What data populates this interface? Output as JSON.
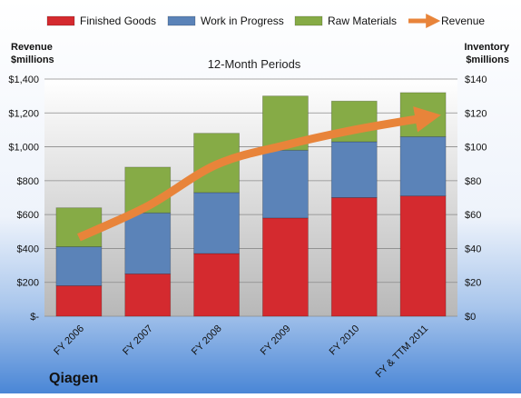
{
  "chart_data": {
    "type": "bar",
    "stacked": true,
    "title": "12-Month Periods",
    "company": "Qiagen",
    "y_left_label_lines": [
      "Revenue",
      "$millions"
    ],
    "y_right_label_lines": [
      "Inventory",
      "$millions"
    ],
    "categories": [
      "FY 2006",
      "FY 2007",
      "FY 2008",
      "FY 2009",
      "FY 2010",
      "FY & TTM 2011"
    ],
    "y_left_ticks": [
      "$-",
      "$200",
      "$400",
      "$600",
      "$800",
      "$1,000",
      "$1,200",
      "$1,400"
    ],
    "y_right_ticks": [
      "$0",
      "$20",
      "$40",
      "$60",
      "$80",
      "$100",
      "$120",
      "$140"
    ],
    "ylim_left": [
      0,
      1400
    ],
    "ylim_right": [
      0,
      140
    ],
    "grid": true,
    "legend_position": "top",
    "series": [
      {
        "name": "Finished Goods",
        "axis": "right",
        "color": "#d42a2f",
        "values": [
          18,
          25,
          37,
          58,
          70,
          71
        ]
      },
      {
        "name": "Work in Progress",
        "axis": "right",
        "color": "#5b83b8",
        "values": [
          23,
          36,
          36,
          40,
          33,
          35
        ]
      },
      {
        "name": "Raw Materials",
        "axis": "right",
        "color": "#86ab46",
        "values": [
          23,
          27,
          35,
          32,
          24,
          26
        ]
      },
      {
        "name": "Revenue",
        "axis": "left",
        "type": "line",
        "color": "#e8843a",
        "values": [
          465,
          650,
          895,
          1010,
          1100,
          1170
        ]
      }
    ]
  }
}
